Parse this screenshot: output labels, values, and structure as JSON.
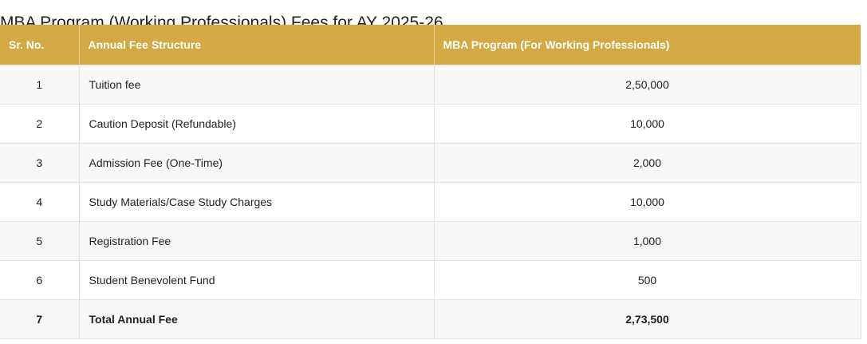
{
  "title": "MBA Program (Working Professionals) Fees for AY 2025-26",
  "colors": {
    "header_bg": "#d2a942",
    "header_text": "#ffffff",
    "row_alt": "#f8f8f8"
  },
  "table": {
    "headers": {
      "sr": "Sr. No.",
      "structure": "Annual Fee Structure",
      "program": "MBA Program (For Working Professionals)"
    },
    "rows": [
      {
        "sr": "1",
        "item": "Tuition fee",
        "amount": "2,50,000"
      },
      {
        "sr": "2",
        "item": "Caution Deposit (Refundable)",
        "amount": "10,000"
      },
      {
        "sr": "3",
        "item": "Admission Fee (One-Time)",
        "amount": "2,000"
      },
      {
        "sr": "4",
        "item": "Study Materials/Case Study Charges",
        "amount": "10,000"
      },
      {
        "sr": "5",
        "item": "Registration Fee",
        "amount": "1,000"
      },
      {
        "sr": "6",
        "item": "Student Benevolent Fund",
        "amount": "500"
      },
      {
        "sr": "7",
        "item": "Total Annual Fee",
        "amount": "2,73,500"
      }
    ]
  }
}
